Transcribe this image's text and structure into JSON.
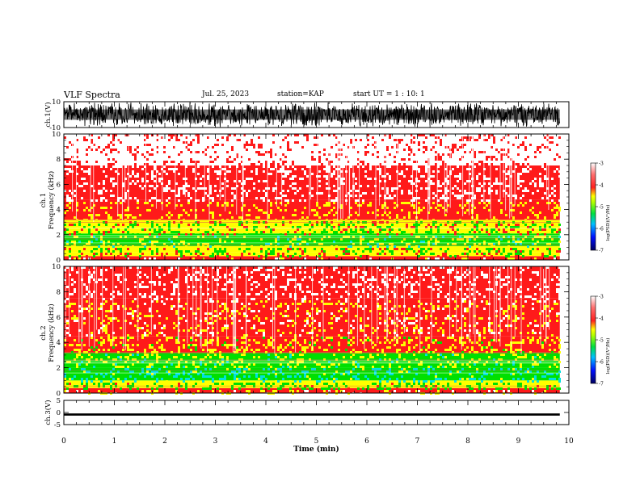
{
  "header": {
    "title": "VLF Spectra",
    "date": "Jul. 25, 2023",
    "station": "station=KAP",
    "start": "start  UT =   1 : 10: 1"
  },
  "chart_data": [
    {
      "type": "line",
      "panel": "ch1-waveform",
      "ylabel": "ch.1(V)",
      "ylim": [
        -10,
        10
      ],
      "yticks": [
        "10",
        "-10"
      ],
      "xlim": [
        0,
        10
      ],
      "data_extent_min": 9.82,
      "description_of_series": "dense waveform filling nearly full range"
    },
    {
      "type": "heatmap",
      "panel": "ch1-spectrogram",
      "ylabel": "ch.1",
      "ylabel2": "Frequency  (kHz)",
      "ylim": [
        0,
        10
      ],
      "yticks": [
        "0",
        "2",
        "4",
        "6",
        "8",
        "10"
      ],
      "xlim": [
        0,
        10
      ],
      "data_extent_min": 9.82,
      "bands_khz": [
        {
          "from": 0.0,
          "to": 0.3,
          "level": -3.8
        },
        {
          "from": 0.3,
          "to": 0.6,
          "level": -4.5
        },
        {
          "from": 0.6,
          "to": 1.1,
          "level": -4.7
        },
        {
          "from": 1.1,
          "to": 2.1,
          "level": -5.0
        },
        {
          "from": 2.1,
          "to": 3.2,
          "level": -4.6
        },
        {
          "from": 3.2,
          "to": 4.8,
          "level": -4.0
        },
        {
          "from": 4.8,
          "to": 7.5,
          "level": -3.4
        },
        {
          "from": 7.5,
          "to": 10.0,
          "level": -3.1
        }
      ]
    },
    {
      "type": "heatmap",
      "panel": "ch2-spectrogram",
      "ylabel": "ch.2",
      "ylabel2": "Frequency  (kHz)",
      "ylim": [
        0,
        10
      ],
      "yticks": [
        "0",
        "2",
        "4",
        "6",
        "8",
        "10"
      ],
      "xlim": [
        0,
        10
      ],
      "data_extent_min": 9.82,
      "bands_khz": [
        {
          "from": 0.0,
          "to": 0.4,
          "level": -3.8
        },
        {
          "from": 0.4,
          "to": 1.0,
          "level": -4.8
        },
        {
          "from": 1.0,
          "to": 2.0,
          "level": -5.4
        },
        {
          "from": 2.0,
          "to": 3.2,
          "level": -5.0
        },
        {
          "from": 3.2,
          "to": 4.5,
          "level": -4.2
        },
        {
          "from": 4.5,
          "to": 7.5,
          "level": -3.8
        },
        {
          "from": 7.5,
          "to": 10.0,
          "level": -3.5
        }
      ]
    },
    {
      "type": "line",
      "panel": "ch3-waveform",
      "ylabel": "ch.3(V)",
      "ylim": [
        -5,
        5
      ],
      "yticks": [
        "5",
        "0",
        "-5"
      ],
      "xlim": [
        0,
        10
      ],
      "xticks": [
        "0",
        "1",
        "2",
        "3",
        "4",
        "5",
        "6",
        "7",
        "8",
        "9",
        "10"
      ],
      "xlabel": "Time  (min)",
      "data_extent_min": 9.82,
      "band_v": [
        -1.3,
        -0.4
      ]
    }
  ],
  "colorbars": [
    {
      "for": "ch.1",
      "label": "log(PSD)(V²/Hz)",
      "range": [
        -7,
        -3
      ],
      "ticks": [
        "-3",
        "-4",
        "-5",
        "-6",
        "-7"
      ]
    },
    {
      "for": "ch.2",
      "label": "log(PSD)(V²/Hz)",
      "range": [
        -7,
        -3
      ],
      "ticks": [
        "-3",
        "-4",
        "-5",
        "-6",
        "-7"
      ]
    }
  ],
  "colors": {
    "c_white": "#ffffff",
    "c_red": "#ff1a1a",
    "c_yellow": "#ffff00",
    "c_green": "#00e000",
    "c_cyan": "#00e0e0",
    "c_blue": "#0010ff",
    "c_navy": "#000070"
  }
}
